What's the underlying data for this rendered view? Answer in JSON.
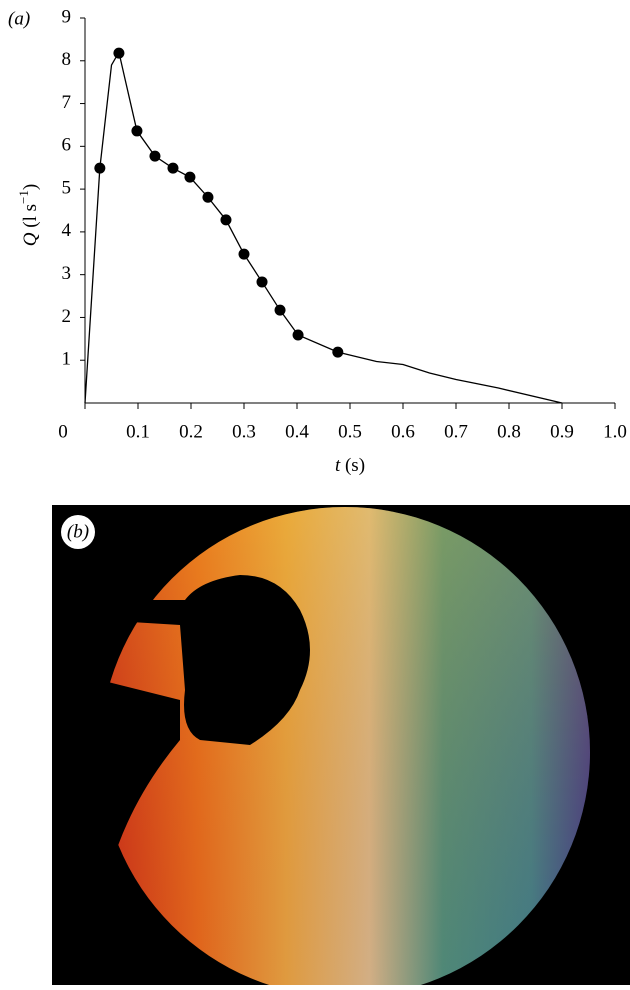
{
  "chart_data": {
    "type": "line",
    "panel_label": "(a)",
    "y_label_var": "Q",
    "y_label_unit": "(l s",
    "y_label_sup": "−1",
    "y_label_close": ")",
    "x_label_var": "t",
    "x_label_unit": "(s)",
    "xlim": [
      0,
      1
    ],
    "ylim": [
      0,
      9
    ],
    "xticks": [
      0,
      0.1,
      0.2,
      0.3,
      0.4,
      0.5,
      0.6,
      0.7,
      0.8,
      0.9,
      {
        "value": 1,
        "label": "1.0"
      }
    ],
    "yticks": [
      1,
      2,
      3,
      4,
      5,
      6,
      7,
      8,
      9
    ],
    "series": [
      {
        "type": "line",
        "color": "#000000",
        "x": [
          0,
          0.028,
          0.05,
          0.064,
          0.075,
          0.098,
          0.132,
          0.166,
          0.198,
          0.232,
          0.266,
          0.3,
          0.334,
          0.368,
          0.402,
          0.477,
          0.55,
          0.6,
          0.65,
          0.7,
          0.78,
          0.9
        ],
        "values": [
          0,
          5.49,
          7.9,
          8.2,
          7.6,
          6.36,
          5.77,
          5.49,
          5.28,
          4.81,
          4.28,
          3.48,
          2.83,
          2.17,
          1.59,
          1.19,
          0.97,
          0.9,
          0.7,
          0.55,
          0.35,
          0
        ]
      },
      {
        "type": "scatter",
        "color": "#000000",
        "x": [
          0.028,
          0.064,
          0.098,
          0.132,
          0.166,
          0.198,
          0.232,
          0.266,
          0.3,
          0.334,
          0.368,
          0.402,
          0.477
        ],
        "values": [
          5.49,
          8.18,
          6.36,
          5.77,
          5.49,
          5.28,
          4.81,
          4.28,
          3.48,
          2.83,
          2.17,
          1.59,
          1.19
        ]
      }
    ]
  },
  "panel_b": {
    "label": "(b)"
  }
}
